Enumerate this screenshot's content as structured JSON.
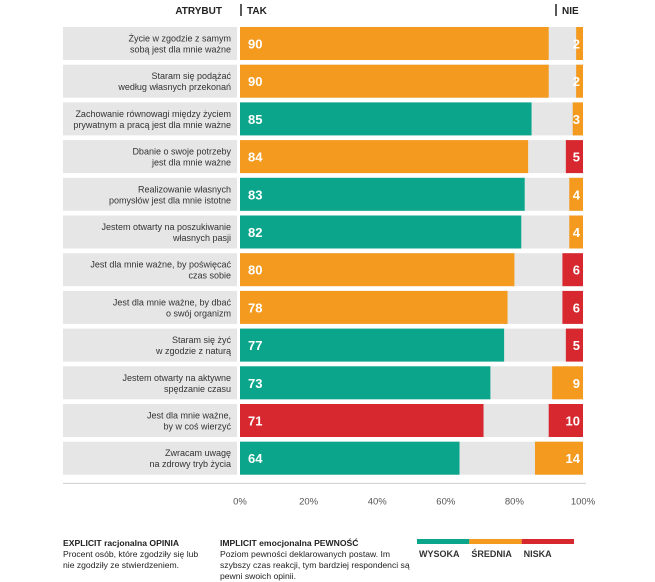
{
  "chart_data": {
    "type": "bar",
    "orientation": "horizontal-stacked-diverging",
    "header": {
      "attribute": "ATRYBUT",
      "yes": "TAK",
      "no": "NIE"
    },
    "xlim": [
      0,
      100
    ],
    "ticks": [
      "0%",
      "20%",
      "40%",
      "60%",
      "80%",
      "100%"
    ],
    "rows": [
      {
        "label": [
          "Życie w zgodzie z samym",
          "sobą jest dla mnie ważne"
        ],
        "tak": 90,
        "tak_level": "srednia",
        "nie": 2,
        "nie_level": "srednia"
      },
      {
        "label": [
          "Staram się podążać",
          "według własnych przekonań"
        ],
        "tak": 90,
        "tak_level": "srednia",
        "nie": 2,
        "nie_level": "srednia"
      },
      {
        "label": [
          "Zachowanie równowagi między życiem",
          "prywatnym a pracą jest dla mnie ważne"
        ],
        "tak": 85,
        "tak_level": "wysoka",
        "nie": 3,
        "nie_level": "srednia"
      },
      {
        "label": [
          "Dbanie o swoje potrzeby",
          "jest dla mnie ważne"
        ],
        "tak": 84,
        "tak_level": "srednia",
        "nie": 5,
        "nie_level": "niska"
      },
      {
        "label": [
          "Realizowanie własnych",
          "pomysłów jest dla mnie istotne"
        ],
        "tak": 83,
        "tak_level": "wysoka",
        "nie": 4,
        "nie_level": "srednia"
      },
      {
        "label": [
          "Jestem otwarty na poszukiwanie",
          "własnych pasji"
        ],
        "tak": 82,
        "tak_level": "wysoka",
        "nie": 4,
        "nie_level": "srednia"
      },
      {
        "label": [
          "Jest dla mnie ważne, by poświęcać",
          "czas sobie"
        ],
        "tak": 80,
        "tak_level": "srednia",
        "nie": 6,
        "nie_level": "niska"
      },
      {
        "label": [
          "Jest dla mnie ważne, by dbać",
          "o swój organizm"
        ],
        "tak": 78,
        "tak_level": "srednia",
        "nie": 6,
        "nie_level": "niska"
      },
      {
        "label": [
          "Staram się żyć",
          "w zgodzie z naturą"
        ],
        "tak": 77,
        "tak_level": "wysoka",
        "nie": 5,
        "nie_level": "niska"
      },
      {
        "label": [
          "Jestem otwarty na aktywne",
          "spędzanie czasu"
        ],
        "tak": 73,
        "tak_level": "wysoka",
        "nie": 9,
        "nie_level": "srednia"
      },
      {
        "label": [
          "Jest dla mnie ważne,",
          "by w coś wierzyć"
        ],
        "tak": 71,
        "tak_level": "niska",
        "nie": 10,
        "nie_level": "niska"
      },
      {
        "label": [
          "Zwracam uwagę",
          "na zdrowy tryb życia"
        ],
        "tak": 64,
        "tak_level": "wysoka",
        "nie": 14,
        "nie_level": "srednia"
      }
    ],
    "legend": [
      {
        "key": "wysoka",
        "label": "WYSOKA",
        "color": "#0aa58a"
      },
      {
        "key": "srednia",
        "label": "ŚREDNIA",
        "color": "#f39a1f"
      },
      {
        "key": "niska",
        "label": "NISKA",
        "color": "#d7282f"
      }
    ],
    "remainder_color": "#e6e6e6",
    "label_bg_color": "#e6e6e6"
  },
  "footer": {
    "explicit_title": "EXPLICIT racjonalna OPINIA",
    "explicit_text": "Procent osób, które zgodziły się lub nie zgodziły ze stwierdzeniem.",
    "implicit_title": "IMPLICIT emocjonalna PEWNOŚĆ",
    "implicit_text": "Poziom pewności deklarowanych postaw. Im szybszy czas reakcji, tym bardziej respondenci są pewni swoich opinii."
  }
}
